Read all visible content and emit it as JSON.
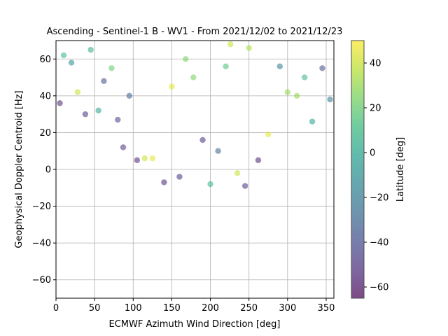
{
  "chart_data": {
    "type": "scatter",
    "title": "Ascending - Sentinel-1 B - WV1 - From 2021/12/02 to 2021/12/23",
    "xlabel": "ECMWF Azimuth Wind Direction [deg]",
    "ylabel": "Geophysical Doppler Centroid [Hz]",
    "xlim": [
      0,
      360
    ],
    "ylim": [
      -70,
      70
    ],
    "xticks": [
      0,
      50,
      100,
      150,
      200,
      250,
      300,
      350
    ],
    "yticks": [
      -60,
      -40,
      -20,
      0,
      20,
      40,
      60
    ],
    "grid": true,
    "colorbar": {
      "label": "Latitude [deg]",
      "range": [
        -65,
        50
      ],
      "ticks": [
        -60,
        -40,
        -20,
        0,
        20,
        40
      ],
      "colormap": "viridis",
      "colors": [
        "#440154",
        "#482878",
        "#3e4989",
        "#31688e",
        "#26828e",
        "#1f9e89",
        "#35b779",
        "#6ece58",
        "#b5de2b",
        "#fde725"
      ]
    },
    "marker_alpha": 0.55,
    "points_sample": [
      {
        "x": 5,
        "y": 36,
        "lat": -55
      },
      {
        "x": 10,
        "y": 62,
        "lat": 10
      },
      {
        "x": 20,
        "y": 58,
        "lat": -10
      },
      {
        "x": 28,
        "y": 42,
        "lat": 40
      },
      {
        "x": 38,
        "y": 30,
        "lat": -50
      },
      {
        "x": 45,
        "y": 65,
        "lat": 5
      },
      {
        "x": 55,
        "y": 32,
        "lat": 0
      },
      {
        "x": 62,
        "y": 48,
        "lat": -40
      },
      {
        "x": 72,
        "y": 55,
        "lat": 20
      },
      {
        "x": 80,
        "y": 27,
        "lat": -45
      },
      {
        "x": 87,
        "y": 12,
        "lat": -50
      },
      {
        "x": 95,
        "y": 40,
        "lat": -30
      },
      {
        "x": 105,
        "y": 5,
        "lat": -55
      },
      {
        "x": 115,
        "y": 6,
        "lat": 40
      },
      {
        "x": 125,
        "y": 6,
        "lat": 45
      },
      {
        "x": 140,
        "y": -7,
        "lat": -55
      },
      {
        "x": 150,
        "y": 45,
        "lat": 45
      },
      {
        "x": 160,
        "y": -4,
        "lat": -50
      },
      {
        "x": 168,
        "y": 60,
        "lat": 25
      },
      {
        "x": 178,
        "y": 50,
        "lat": 25
      },
      {
        "x": 190,
        "y": 16,
        "lat": -50
      },
      {
        "x": 200,
        "y": -8,
        "lat": 10
      },
      {
        "x": 210,
        "y": 10,
        "lat": -30
      },
      {
        "x": 220,
        "y": 56,
        "lat": 15
      },
      {
        "x": 226,
        "y": 68,
        "lat": 40
      },
      {
        "x": 235,
        "y": -2,
        "lat": 40
      },
      {
        "x": 245,
        "y": -9,
        "lat": -50
      },
      {
        "x": 250,
        "y": 66,
        "lat": 35
      },
      {
        "x": 262,
        "y": 5,
        "lat": -55
      },
      {
        "x": 275,
        "y": 19,
        "lat": 45
      },
      {
        "x": 290,
        "y": 56,
        "lat": -20
      },
      {
        "x": 300,
        "y": 42,
        "lat": 30
      },
      {
        "x": 312,
        "y": 40,
        "lat": 30
      },
      {
        "x": 322,
        "y": 50,
        "lat": 10
      },
      {
        "x": 332,
        "y": 26,
        "lat": 0
      },
      {
        "x": 345,
        "y": 55,
        "lat": -40
      },
      {
        "x": 355,
        "y": 38,
        "lat": -20
      }
    ]
  }
}
